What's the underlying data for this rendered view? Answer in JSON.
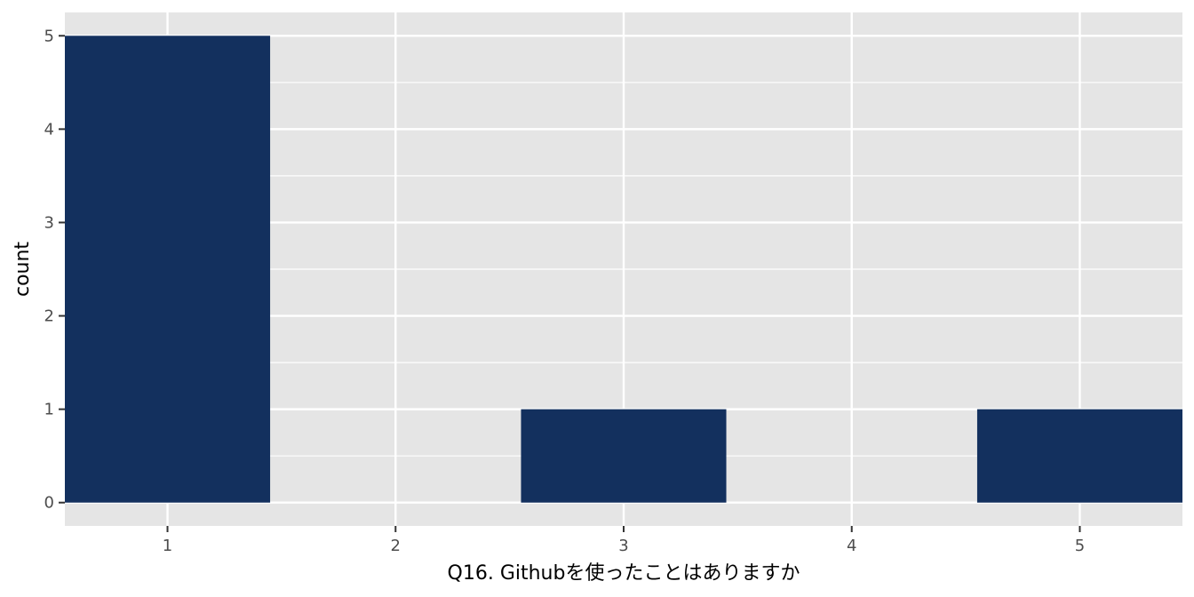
{
  "chart_data": {
    "type": "bar",
    "x": [
      1,
      3,
      5
    ],
    "values": [
      5,
      1,
      1
    ],
    "x_ticks": [
      "1",
      "2",
      "3",
      "4",
      "5"
    ],
    "y_ticks": [
      "0",
      "1",
      "2",
      "3",
      "4",
      "5"
    ],
    "xlabel": "Q16. Githubを使ったことはありますか",
    "ylabel": "count",
    "xlim": [
      0.55,
      5.45
    ],
    "ylim": [
      -0.25,
      5.25
    ],
    "grid": true,
    "colors": {
      "bar": "#13305e",
      "panel": "#e5e5e5",
      "grid": "#ffffff"
    }
  }
}
